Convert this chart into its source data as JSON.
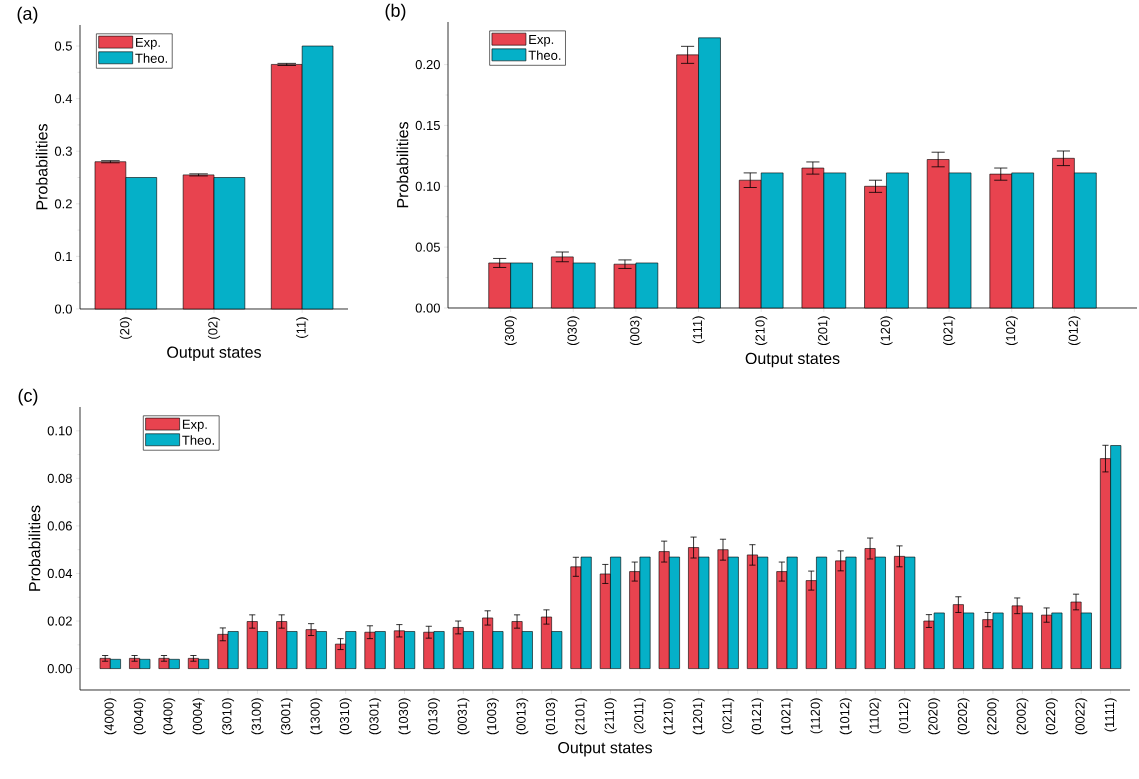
{
  "chart_data": [
    {
      "type": "bar",
      "title": "(a)",
      "xlabel": "Output states",
      "ylabel": "Probabilities",
      "legend": "top left",
      "categories": [
        "(20)",
        "(02)",
        "(11)"
      ],
      "series": [
        {
          "name": "Exp.",
          "color": "#e8434f",
          "values": [
            0.28,
            0.255,
            0.465
          ],
          "errors": [
            0.002,
            0.002,
            0.002
          ]
        },
        {
          "name": "Theo.",
          "color": "#05b0c8",
          "values": [
            0.25,
            0.25,
            0.5
          ]
        }
      ],
      "ylim": [
        0,
        0.54
      ],
      "yticks": [
        {
          "value": 0,
          "label": "0.0"
        },
        {
          "value": 0.1,
          "label": "0.1"
        },
        {
          "value": 0.2,
          "label": "0.2"
        },
        {
          "value": 0.3,
          "label": "0.3"
        },
        {
          "value": 0.4,
          "label": "0.4"
        },
        {
          "value": 0.5,
          "label": "0.5"
        }
      ]
    },
    {
      "type": "bar",
      "title": "(b)",
      "xlabel": "Output states",
      "ylabel": "Probabilities",
      "legend": "top left",
      "categories": [
        "(300)",
        "(030)",
        "(003)",
        "(111)",
        "(210)",
        "(201)",
        "(120)",
        "(021)",
        "(102)",
        "(012)"
      ],
      "series": [
        {
          "name": "Exp.",
          "color": "#e8434f",
          "values": [
            0.037,
            0.042,
            0.036,
            0.208,
            0.105,
            0.115,
            0.1,
            0.122,
            0.11,
            0.123
          ],
          "errors": [
            0.0037,
            0.004,
            0.0035,
            0.007,
            0.006,
            0.005,
            0.005,
            0.006,
            0.005,
            0.006
          ]
        },
        {
          "name": "Theo.",
          "color": "#05b0c8",
          "values": [
            0.037,
            0.037,
            0.037,
            0.222,
            0.111,
            0.111,
            0.111,
            0.111,
            0.111,
            0.111
          ]
        }
      ],
      "ylim": [
        0,
        0.235
      ],
      "yticks": [
        {
          "value": 0,
          "label": "0.00"
        },
        {
          "value": 0.05,
          "label": "0.05"
        },
        {
          "value": 0.1,
          "label": "0.10"
        },
        {
          "value": 0.15,
          "label": "0.15"
        },
        {
          "value": 0.2,
          "label": "0.20"
        }
      ]
    },
    {
      "type": "bar",
      "title": "(c)",
      "xlabel": "Output states",
      "ylabel": "Probabilities",
      "legend": "top left",
      "categories": [
        "(4000)",
        "(0040)",
        "(0400)",
        "(0004)",
        "(3010)",
        "(3100)",
        "(3001)",
        "(1300)",
        "(0310)",
        "(0301)",
        "(1030)",
        "(0130)",
        "(0031)",
        "(1003)",
        "(0013)",
        "(0103)",
        "(2101)",
        "(2110)",
        "(2011)",
        "(1210)",
        "(1201)",
        "(0211)",
        "(0121)",
        "(1021)",
        "(1120)",
        "(1012)",
        "(1102)",
        "(0112)",
        "(2020)",
        "(0202)",
        "(2200)",
        "(2002)",
        "(0220)",
        "(0022)",
        "(1111)"
      ],
      "series": [
        {
          "name": "Exp.",
          "color": "#e8434f",
          "values": [
            0.0043,
            0.0043,
            0.0043,
            0.0043,
            0.0144,
            0.0198,
            0.0198,
            0.0164,
            0.0103,
            0.0153,
            0.0159,
            0.0153,
            0.0173,
            0.0213,
            0.0198,
            0.0217,
            0.0428,
            0.0398,
            0.0408,
            0.0492,
            0.0509,
            0.05,
            0.0478,
            0.0408,
            0.037,
            0.0453,
            0.0505,
            0.0472,
            0.02,
            0.0269,
            0.0206,
            0.0264,
            0.0225,
            0.028,
            0.0883
          ],
          "errors": [
            0.0012,
            0.0012,
            0.0012,
            0.0012,
            0.0027,
            0.0028,
            0.0028,
            0.0025,
            0.0023,
            0.0027,
            0.0026,
            0.0025,
            0.0027,
            0.003,
            0.0028,
            0.003,
            0.004,
            0.004,
            0.004,
            0.0044,
            0.0044,
            0.0044,
            0.0043,
            0.004,
            0.004,
            0.0042,
            0.0044,
            0.0044,
            0.0027,
            0.0033,
            0.003,
            0.0033,
            0.003,
            0.0033,
            0.0056
          ]
        },
        {
          "name": "Theo.",
          "color": "#05b0c8",
          "values": [
            0.0039,
            0.0039,
            0.0039,
            0.0039,
            0.0156,
            0.0156,
            0.0156,
            0.0156,
            0.0156,
            0.0156,
            0.0156,
            0.0156,
            0.0156,
            0.0156,
            0.0156,
            0.0156,
            0.0469,
            0.0469,
            0.0469,
            0.0469,
            0.0469,
            0.0469,
            0.0469,
            0.0469,
            0.0469,
            0.0469,
            0.0469,
            0.0469,
            0.0234,
            0.0234,
            0.0234,
            0.0234,
            0.0234,
            0.0234,
            0.0938
          ]
        }
      ],
      "ylim": [
        -0.009,
        0.11
      ],
      "yticks": [
        {
          "value": 0,
          "label": "0.00"
        },
        {
          "value": 0.02,
          "label": "0.02"
        },
        {
          "value": 0.04,
          "label": "0.04"
        },
        {
          "value": 0.06,
          "label": "0.06"
        },
        {
          "value": 0.08,
          "label": "0.08"
        },
        {
          "value": 0.1,
          "label": "0.10"
        }
      ]
    }
  ]
}
